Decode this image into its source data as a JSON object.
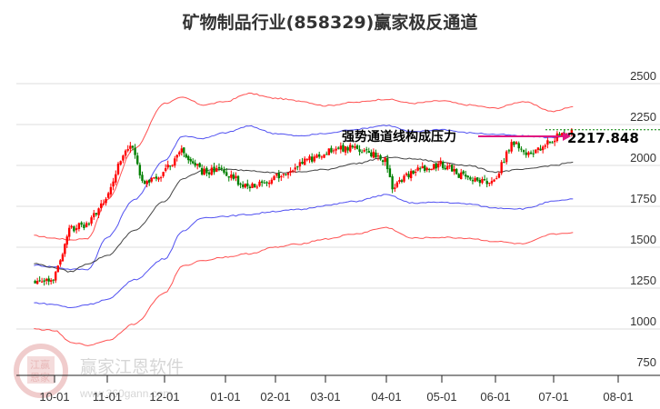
{
  "title": "矿物制品行业(858329)赢家极反通道",
  "annotation": {
    "text": "强势通道线构成压力",
    "value_label": "2217.848",
    "arrow_color": "#e0157f"
  },
  "watermark": {
    "text": "赢家江恩软件",
    "url": "www.360gann.com",
    "seal_top": "江赢",
    "seal_bottom": "恩家"
  },
  "colors": {
    "up": "#ff0000",
    "down": "#008000",
    "outer_band": "#ff3333",
    "inner_band": "#3333ee",
    "mid_line": "#222222",
    "grid": "#dddddd",
    "last_line": "#008000"
  },
  "chart_data": {
    "type": "candlestick",
    "title": "矿物制品行业(858329)赢家极反通道",
    "xlabel": "",
    "ylabel": "",
    "ylim": [
      750,
      2580
    ],
    "y_ticks": [
      2500,
      2250,
      2000,
      1750,
      1500,
      1250,
      1000,
      750
    ],
    "x_ticks": [
      "10-01",
      "11-01",
      "12-01",
      "01-01",
      "02-01",
      "03-01",
      "04-01",
      "05-01",
      "06-01",
      "07-01",
      "08-01"
    ],
    "grid": true,
    "last_value": 2217.848,
    "series": [
      {
        "name": "outer_upper_band",
        "color": "#ff3333",
        "x": [
          "09-20",
          "10-01",
          "10-10",
          "10-20",
          "11-01",
          "11-15",
          "12-01",
          "12-10",
          "12-20",
          "01-01",
          "01-15",
          "02-01",
          "02-15",
          "03-01",
          "03-15",
          "04-01",
          "04-15",
          "05-01",
          "05-15",
          "06-01",
          "06-15",
          "07-01",
          "07-10"
        ],
        "values": [
          1570,
          1555,
          1545,
          1555,
          1790,
          2100,
          2380,
          2415,
          2370,
          2390,
          2440,
          2410,
          2395,
          2365,
          2385,
          2405,
          2380,
          2395,
          2370,
          2350,
          2390,
          2330,
          2360
        ]
      },
      {
        "name": "inner_upper_band",
        "color": "#3333ee",
        "x": [
          "09-20",
          "10-01",
          "10-10",
          "10-20",
          "11-01",
          "11-15",
          "12-01",
          "12-10",
          "12-20",
          "01-01",
          "01-15",
          "02-01",
          "02-15",
          "03-01",
          "03-15",
          "04-01",
          "04-15",
          "05-01",
          "05-15",
          "06-01",
          "06-15",
          "07-01",
          "07-10"
        ],
        "values": [
          1390,
          1380,
          1365,
          1365,
          1560,
          1790,
          2030,
          2180,
          2165,
          2200,
          2240,
          2195,
          2180,
          2195,
          2220,
          2245,
          2205,
          2220,
          2200,
          2190,
          2180,
          2170,
          2195
        ]
      },
      {
        "name": "middle_line",
        "color": "#222222",
        "x": [
          "09-20",
          "10-01",
          "10-10",
          "10-20",
          "11-01",
          "11-15",
          "12-01",
          "12-10",
          "12-20",
          "01-01",
          "01-15",
          "02-01",
          "02-15",
          "03-01",
          "03-15",
          "04-01",
          "04-15",
          "05-01",
          "05-15",
          "06-01",
          "06-15",
          "07-01",
          "07-10"
        ],
        "values": [
          1400,
          1375,
          1350,
          1400,
          1450,
          1600,
          1780,
          1920,
          1970,
          1975,
          1970,
          1955,
          1960,
          1975,
          2010,
          2050,
          2040,
          2020,
          2000,
          1960,
          1975,
          2000,
          2020
        ]
      },
      {
        "name": "inner_lower_band",
        "color": "#3333ee",
        "x": [
          "09-20",
          "10-01",
          "10-10",
          "10-20",
          "11-01",
          "11-15",
          "12-01",
          "12-10",
          "12-20",
          "01-01",
          "01-15",
          "02-01",
          "02-15",
          "03-01",
          "03-15",
          "04-01",
          "04-15",
          "05-01",
          "05-15",
          "06-01",
          "06-15",
          "07-01",
          "07-10"
        ],
        "values": [
          1160,
          1150,
          1130,
          1150,
          1180,
          1300,
          1430,
          1600,
          1680,
          1690,
          1700,
          1720,
          1730,
          1755,
          1780,
          1820,
          1770,
          1775,
          1765,
          1740,
          1735,
          1780,
          1795
        ]
      },
      {
        "name": "outer_lower_band",
        "color": "#ff3333",
        "x": [
          "09-20",
          "10-01",
          "10-10",
          "10-20",
          "11-01",
          "11-15",
          "12-01",
          "12-10",
          "12-20",
          "01-01",
          "01-15",
          "02-01",
          "02-15",
          "03-01",
          "03-15",
          "04-01",
          "04-15",
          "05-01",
          "05-15",
          "06-01",
          "06-15",
          "07-01",
          "07-10"
        ],
        "values": [
          1000,
          990,
          920,
          900,
          930,
          1030,
          1220,
          1385,
          1420,
          1440,
          1460,
          1500,
          1520,
          1550,
          1580,
          1620,
          1555,
          1560,
          1555,
          1535,
          1520,
          1580,
          1590
        ]
      },
      {
        "name": "close_price_approx",
        "color": "#ff0000",
        "x": [
          "09-20",
          "10-01",
          "10-05",
          "10-10",
          "10-20",
          "11-01",
          "11-10",
          "11-15",
          "11-20",
          "12-01",
          "12-10",
          "12-20",
          "01-01",
          "01-15",
          "02-01",
          "02-15",
          "03-01",
          "03-15",
          "04-01",
          "04-05",
          "04-15",
          "05-01",
          "05-15",
          "06-01",
          "06-10",
          "06-20",
          "07-01",
          "07-10"
        ],
        "values": [
          1295,
          1290,
          1410,
          1610,
          1640,
          1800,
          2080,
          2130,
          1900,
          1950,
          2090,
          1960,
          1970,
          1860,
          1920,
          2000,
          2080,
          2120,
          2030,
          1860,
          1960,
          2010,
          1920,
          1900,
          2140,
          2060,
          2160,
          2218
        ]
      }
    ]
  }
}
